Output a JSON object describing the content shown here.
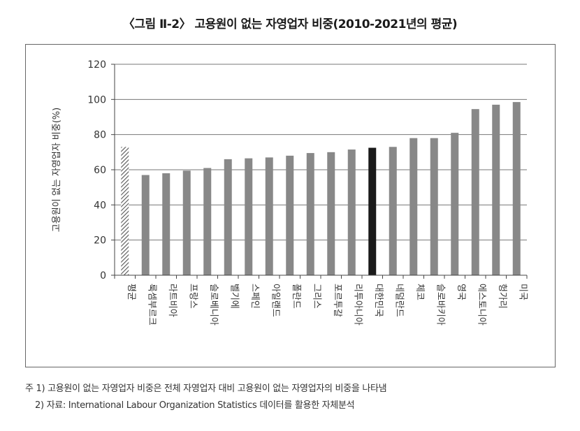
{
  "figure": {
    "title": "〈그림 Ⅱ-2〉 고용원이 없는 자영업자 비중(2010-2021년의 평균)"
  },
  "chart_data": {
    "type": "bar",
    "ylabel": "고용원이 없는 자영업자 비중(%)",
    "xlabel": "",
    "ylim": [
      0,
      120
    ],
    "yticks": [
      0,
      20,
      40,
      60,
      80,
      100,
      120
    ],
    "grid": true,
    "legend": "none",
    "categories": [
      "평균",
      "룩셈부르크",
      "라트비아",
      "프랑스",
      "슬로베니아",
      "벨기에",
      "스페인",
      "아일랜드",
      "폴란드",
      "그리스",
      "포르투갈",
      "리투아니아",
      "대한민국",
      "네덜란드",
      "체코",
      "슬로바키아",
      "영국",
      "에스토니아",
      "헝가리",
      "미국"
    ],
    "values": [
      73,
      57,
      58,
      59.5,
      61,
      66,
      66.5,
      67,
      68,
      69.5,
      70,
      71.5,
      72.5,
      73,
      78,
      78,
      81,
      94.5,
      97,
      98.5
    ],
    "colors": {
      "default": "#888888",
      "highlight": "#1a1a1a",
      "average_hatch": "#555555",
      "grid": "#777777",
      "axis": "#444444"
    },
    "highlight_category": "대한민국",
    "average_category": "평균"
  },
  "notes": {
    "line1": "주 1) 고용원이 없는 자영업자 비중은 전체 자영업자 대비 고용원이 없는 자영업자의 비중을 나타냄",
    "line2": "2) 자료: International Labour Organization Statistics 데이터를 활용한 자체분석"
  }
}
